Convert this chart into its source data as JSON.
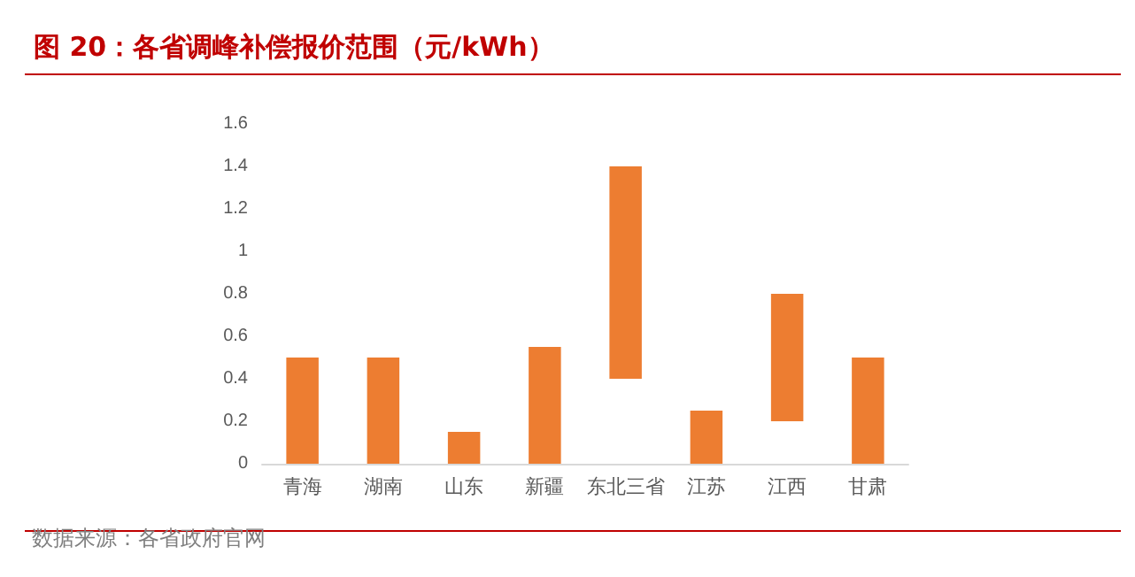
{
  "chart_data": {
    "type": "bar",
    "title": "图 20：各省调峰补偿报价范围（元/kWh）",
    "categories": [
      "青海",
      "湖南",
      "山东",
      "新疆",
      "东北三省",
      "江苏",
      "江西",
      "甘肃"
    ],
    "base": [
      0,
      0,
      0,
      0,
      0.4,
      0,
      0.2,
      0
    ],
    "values": [
      0.5,
      0.5,
      0.15,
      0.55,
      1.0,
      0.25,
      0.6,
      0.5
    ],
    "color": "#ed7d31",
    "ylim": [
      0,
      1.6
    ],
    "yticks": [
      0,
      0.2,
      0.4,
      0.6,
      0.8,
      1,
      1.2,
      1.4,
      1.6
    ],
    "grid": false,
    "annotations": [
      "数据来源：各省政府官网"
    ]
  }
}
